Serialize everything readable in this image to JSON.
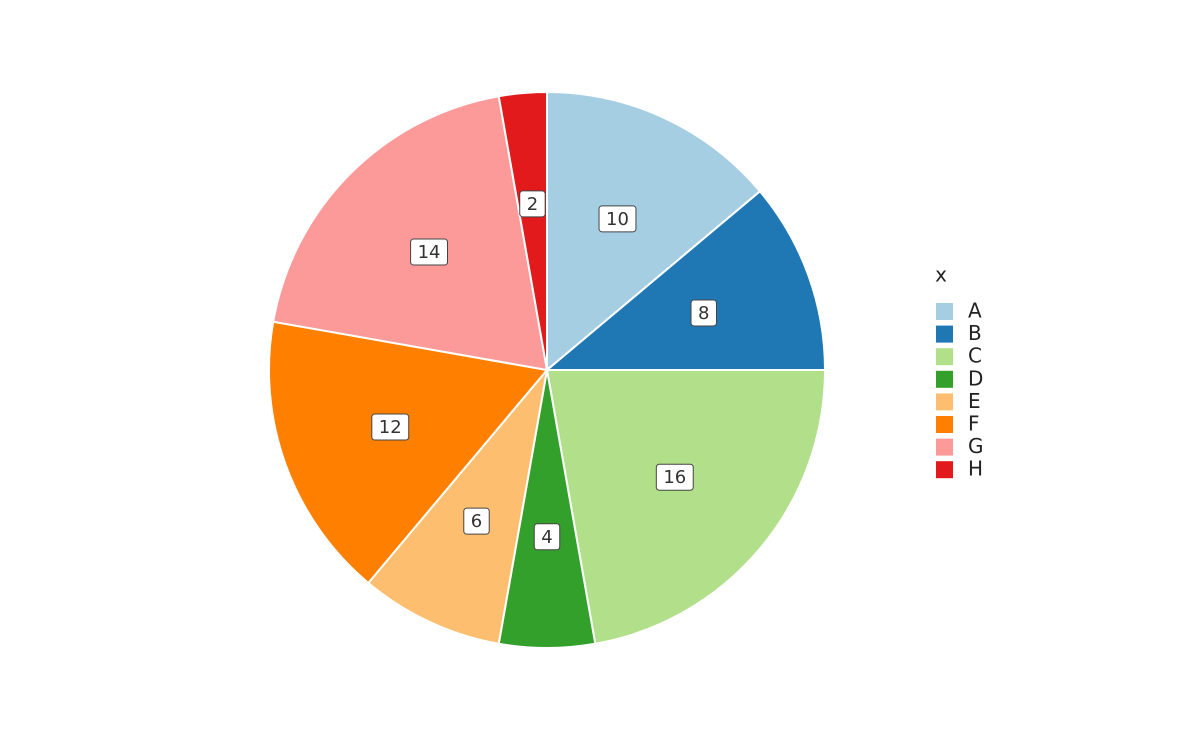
{
  "chart_data": {
    "type": "pie",
    "categories": [
      "A",
      "B",
      "C",
      "D",
      "E",
      "F",
      "G",
      "H"
    ],
    "values": [
      10,
      8,
      16,
      4,
      6,
      12,
      14,
      2
    ],
    "colors": [
      "#a6cee3",
      "#1f78b4",
      "#b2df8a",
      "#33a02c",
      "#fdbf6f",
      "#ff7f00",
      "#fb9a99",
      "#e31a1c"
    ],
    "legend_title": "x"
  }
}
